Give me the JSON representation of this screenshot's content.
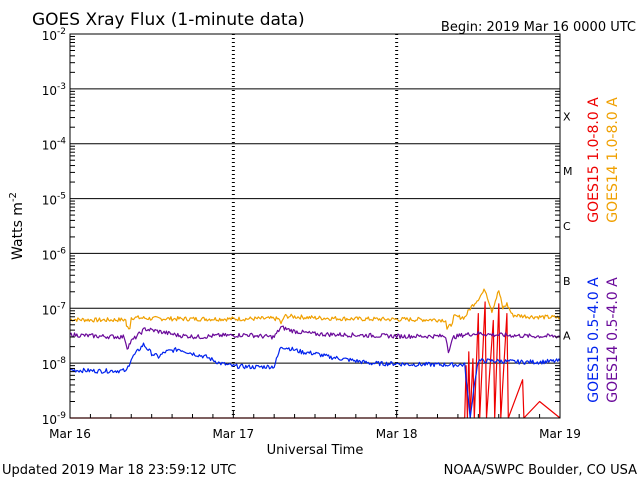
{
  "colors": {
    "background": "#ffffff",
    "axis": "#000000",
    "goes15_long": "#ee0000",
    "goes14_long": "#f0a000",
    "goes15_short": "#0022ee",
    "goes14_short": "#6a0a9a"
  },
  "chart_data": {
    "type": "line",
    "title": "GOES Xray Flux (1-minute data)",
    "begin_label": "Begin:  2019 Mar 16 0000 UTC",
    "xlabel": "Universal Time",
    "ylabel": "Watts m",
    "ylabel_sup": "-2",
    "yscale": "log",
    "ylim": [
      1e-09,
      0.01
    ],
    "xlim_hours": [
      0,
      72
    ],
    "x_ticks": [
      {
        "hour": 0,
        "label": "Mar 16"
      },
      {
        "hour": 24,
        "label": "Mar 17"
      },
      {
        "hour": 48,
        "label": "Mar 18"
      },
      {
        "hour": 72,
        "label": "Mar 19"
      }
    ],
    "y_ticks": [
      {
        "value": 0.01,
        "base": "10",
        "exp": "-2"
      },
      {
        "value": 0.001,
        "base": "10",
        "exp": "-3"
      },
      {
        "value": 0.0001,
        "base": "10",
        "exp": "-4"
      },
      {
        "value": 1e-05,
        "base": "10",
        "exp": "-5"
      },
      {
        "value": 1e-06,
        "base": "10",
        "exp": "-6"
      },
      {
        "value": 1e-07,
        "base": "10",
        "exp": "-7"
      },
      {
        "value": 1e-08,
        "base": "10",
        "exp": "-8"
      },
      {
        "value": 1e-09,
        "base": "10",
        "exp": "-9"
      }
    ],
    "flare_classes": [
      {
        "label": "X",
        "value": 0.0003162
      },
      {
        "label": "M",
        "value": 3.162e-05
      },
      {
        "label": "C",
        "value": 3.162e-06
      },
      {
        "label": "B",
        "value": 3.162e-07
      },
      {
        "label": "A",
        "value": 3.162e-08
      }
    ],
    "series": [
      {
        "name": "GOES15 1.0-8.0 A",
        "color": "#ee0000",
        "points": [
          [
            0,
            1e-09
          ],
          [
            58,
            1e-09
          ],
          [
            58.2,
            9e-09
          ],
          [
            58.4,
            1e-09
          ],
          [
            58.6,
            1.6e-08
          ],
          [
            58.8,
            1e-09
          ],
          [
            59.2,
            1.2e-08
          ],
          [
            59.4,
            1e-09
          ],
          [
            60,
            8e-08
          ],
          [
            60.2,
            1e-09
          ],
          [
            61,
            1.3e-07
          ],
          [
            61.2,
            1e-09
          ],
          [
            62.2,
            6e-08
          ],
          [
            62.4,
            1e-09
          ],
          [
            63,
            1.2e-07
          ],
          [
            63.3,
            1e-09
          ],
          [
            64.2,
            8e-08
          ],
          [
            64.4,
            1e-09
          ],
          [
            66.5,
            5e-09
          ],
          [
            66.7,
            1e-09
          ],
          [
            69,
            2e-09
          ],
          [
            72,
            1e-09
          ]
        ]
      },
      {
        "name": "GOES14 1.0-8.0 A",
        "color": "#f0a000",
        "points": [
          [
            0,
            6.3e-08
          ],
          [
            4,
            6.1e-08
          ],
          [
            8.2,
            6.2e-08
          ],
          [
            8.3,
            4.5e-08
          ],
          [
            8.8,
            4.5e-08
          ],
          [
            9,
            6.8e-08
          ],
          [
            12,
            6.5e-08
          ],
          [
            18,
            6.4e-08
          ],
          [
            24,
            6.4e-08
          ],
          [
            30,
            6.5e-08
          ],
          [
            30.8,
            6.3e-08
          ],
          [
            31,
            5e-08
          ],
          [
            31.5,
            7.2e-08
          ],
          [
            36,
            6.7e-08
          ],
          [
            42,
            6.4e-08
          ],
          [
            47,
            6.3e-08
          ],
          [
            54,
            6.2e-08
          ],
          [
            55.2,
            6.1e-08
          ],
          [
            55.4,
            4.2e-08
          ],
          [
            56,
            5e-08
          ],
          [
            56.4,
            7e-08
          ],
          [
            58,
            6.8e-08
          ],
          [
            58.8,
            1e-07
          ],
          [
            60,
            1.5e-07
          ],
          [
            61,
            2.2e-07
          ],
          [
            62,
            9e-08
          ],
          [
            63,
            2.1e-07
          ],
          [
            63.6,
            1e-07
          ],
          [
            64.2,
            1.2e-07
          ],
          [
            65,
            7.5e-08
          ],
          [
            68,
            7e-08
          ],
          [
            72,
            6.8e-08
          ]
        ]
      },
      {
        "name": "GOES15 0.5-4.0 A",
        "color": "#0022ee",
        "points": [
          [
            0,
            7.5e-09
          ],
          [
            4,
            7.2e-09
          ],
          [
            8,
            7.3e-09
          ],
          [
            8.2,
            6.8e-09
          ],
          [
            9,
            1.2e-08
          ],
          [
            10.8,
            2.2e-08
          ],
          [
            12,
            1.5e-08
          ],
          [
            13,
            1.3e-08
          ],
          [
            14,
            1.6e-08
          ],
          [
            16,
            1.8e-08
          ],
          [
            18,
            1.5e-08
          ],
          [
            20,
            1.3e-08
          ],
          [
            22,
            1e-08
          ],
          [
            24,
            8.8e-09
          ],
          [
            27,
            8.5e-09
          ],
          [
            30,
            8.7e-09
          ],
          [
            31,
            2e-08
          ],
          [
            32,
            1.9e-08
          ],
          [
            34,
            1.6e-08
          ],
          [
            36,
            1.5e-08
          ],
          [
            38,
            1.3e-08
          ],
          [
            40,
            1.2e-08
          ],
          [
            42,
            1.1e-08
          ],
          [
            44,
            1e-08
          ],
          [
            46,
            9.8e-09
          ],
          [
            48,
            9.8e-09
          ],
          [
            50,
            9.5e-09
          ],
          [
            54,
            9.4e-09
          ],
          [
            58,
            9.3e-09
          ],
          [
            58.8,
            1e-09
          ],
          [
            59.5,
            5e-09
          ],
          [
            60,
            1.1e-08
          ],
          [
            62,
            1.1e-08
          ],
          [
            66,
            1.05e-08
          ],
          [
            69,
            1.05e-08
          ],
          [
            72,
            1.1e-08
          ]
        ]
      },
      {
        "name": "GOES14 0.5-4.0 A",
        "color": "#6a0a9a",
        "points": [
          [
            0,
            3.3e-08
          ],
          [
            4,
            3.1e-08
          ],
          [
            8,
            3e-08
          ],
          [
            8.4,
            1.9e-08
          ],
          [
            9,
            2.5e-08
          ],
          [
            11,
            4.2e-08
          ],
          [
            13,
            3.8e-08
          ],
          [
            16,
            3.2e-08
          ],
          [
            19,
            3e-08
          ],
          [
            22,
            3.2e-08
          ],
          [
            24,
            3.2e-08
          ],
          [
            26,
            3.3e-08
          ],
          [
            28,
            3.1e-08
          ],
          [
            30,
            3e-08
          ],
          [
            31,
            4.5e-08
          ],
          [
            33,
            3.8e-08
          ],
          [
            36,
            3.4e-08
          ],
          [
            40,
            3.3e-08
          ],
          [
            44,
            3.2e-08
          ],
          [
            48,
            3.1e-08
          ],
          [
            52,
            3.1e-08
          ],
          [
            55.2,
            3.1e-08
          ],
          [
            55.6,
            1.7e-08
          ],
          [
            56.4,
            3e-08
          ],
          [
            58,
            3.3e-08
          ],
          [
            60,
            3.5e-08
          ],
          [
            62,
            3.3e-08
          ],
          [
            65,
            3.2e-08
          ],
          [
            68,
            3.1e-08
          ],
          [
            72,
            3.1e-08
          ]
        ]
      }
    ],
    "footer_left": "Updated 2019 Mar 18 23:59:12 UTC",
    "footer_right": "NOAA/SWPC Boulder, CO USA"
  }
}
